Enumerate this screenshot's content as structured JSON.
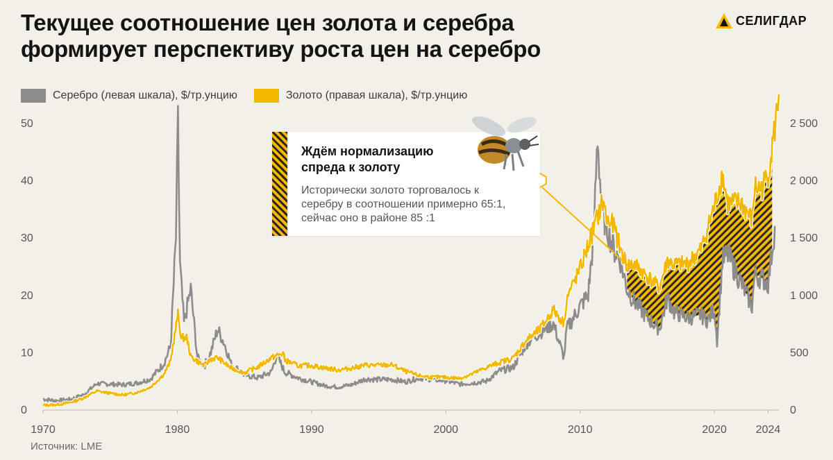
{
  "title_lines": [
    "Текущее соотношение цен золота и серебра",
    "формирует перспективу роста цен на серебро"
  ],
  "logo": {
    "text": "СЕЛИГДАР"
  },
  "colors": {
    "silver": "#8c8c8c",
    "gold": "#f5b800",
    "background": "#f3f0ea",
    "text": "#141414"
  },
  "callout": {
    "heading_lines": [
      "Ждём нормализацию",
      "спреда к золоту"
    ],
    "body_lines": [
      "Исторически золото торговалось к",
      "серебру в соотношении примерно 65:1,",
      "сейчас оно в районе 85 :1"
    ],
    "icon": "bee-icon",
    "marker": "hexagon-marker-icon"
  },
  "source": "Источник: LME",
  "chart_data": {
    "type": "line",
    "title": "Текущее соотношение цен золота и серебра формирует перспективу роста цен на серебро",
    "xlabel": "",
    "xlim": [
      1970,
      2024.8
    ],
    "x_ticks": [
      1970,
      1980,
      1990,
      2000,
      2010,
      2020,
      2024
    ],
    "y_left": {
      "lim": [
        0,
        50
      ],
      "ticks": [
        0,
        10,
        20,
        30,
        40,
        50
      ],
      "tick_labels": [
        "0",
        "10",
        "20",
        "30",
        "40",
        "50"
      ]
    },
    "y_right": {
      "lim": [
        0,
        2500
      ],
      "ticks": [
        0,
        500,
        1000,
        1500,
        2000,
        2500
      ],
      "tick_labels": [
        "0",
        "500",
        "1 000",
        "1 500",
        "2 000",
        "2 500"
      ]
    },
    "legend_position": "top-left",
    "shaded_spread_range": [
      2013.5,
      2024.3
    ],
    "series": [
      {
        "name": "Серебро (левая шкала), $/тр.унцию",
        "axis": "left",
        "color": "#8c8c8c",
        "x": [
          1970,
          1971,
          1972,
          1973,
          1974,
          1975,
          1976,
          1977,
          1978,
          1979,
          1979.5,
          1979.9,
          1980.05,
          1980.2,
          1980.5,
          1981,
          1981.5,
          1982,
          1982.5,
          1983,
          1983.5,
          1984,
          1985,
          1986,
          1987,
          1987.4,
          1988,
          1989,
          1990,
          1991,
          1992,
          1993,
          1994,
          1995,
          1996,
          1997,
          1998,
          1999,
          2000,
          2001,
          2002,
          2003,
          2004,
          2005,
          2006,
          2007,
          2008,
          2008.8,
          2009,
          2010,
          2010.6,
          2011,
          2011.3,
          2011.6,
          2012,
          2012.5,
          2013,
          2013.5,
          2014,
          2015,
          2015.9,
          2016.5,
          2017,
          2018,
          2019,
          2019.5,
          2020,
          2020.2,
          2020.6,
          2021,
          2022,
          2022.8,
          2023,
          2023.5,
          2024,
          2024.5
        ],
        "values": [
          1.8,
          1.5,
          1.7,
          2.5,
          4.5,
          4.4,
          4.3,
          4.6,
          5.3,
          8.0,
          11.0,
          30.0,
          49.5,
          25.0,
          15.0,
          21.0,
          9.0,
          7.5,
          10.0,
          14.0,
          11.5,
          8.0,
          6.0,
          5.5,
          6.5,
          9.5,
          6.5,
          5.5,
          4.8,
          4.1,
          3.9,
          4.3,
          5.3,
          5.2,
          5.2,
          4.8,
          5.5,
          5.2,
          5.0,
          4.4,
          4.6,
          4.9,
          6.7,
          7.3,
          11.5,
          13.4,
          15.0,
          9.0,
          14.0,
          18.0,
          20.0,
          30.0,
          48.0,
          35.0,
          32.0,
          28.0,
          26.0,
          21.0,
          19.0,
          16.0,
          14.0,
          19.5,
          17.0,
          16.0,
          16.5,
          15.5,
          17.5,
          12.0,
          26.0,
          27.0,
          22.0,
          18.0,
          23.5,
          23.0,
          22.0,
          32.0
        ]
      },
      {
        "name": "Золото (правая шкала), $/тр.унцию",
        "axis": "right",
        "color": "#f5b800",
        "x": [
          1970,
          1971,
          1972,
          1973,
          1974,
          1975,
          1976,
          1977,
          1978,
          1979,
          1979.5,
          1980.05,
          1980.3,
          1980.7,
          1981,
          1982,
          1982.5,
          1983,
          1984,
          1985,
          1986,
          1987,
          1987.9,
          1988,
          1989,
          1990,
          1991,
          1992,
          1993,
          1994,
          1995,
          1996,
          1997,
          1998,
          1999,
          2000,
          2001,
          2002,
          2003,
          2004,
          2005,
          2006,
          2007,
          2008,
          2008.8,
          2009,
          2010,
          2011,
          2011.7,
          2012,
          2012.5,
          2013,
          2013.5,
          2014,
          2015,
          2015.9,
          2016.5,
          2017,
          2018,
          2019,
          2020,
          2020.6,
          2021,
          2022,
          2022.8,
          2023,
          2023.5,
          2024,
          2024.5,
          2024.8
        ],
        "values": [
          36,
          41,
          58,
          98,
          160,
          140,
          125,
          148,
          193,
          306,
          420,
          830,
          620,
          630,
          460,
          380,
          440,
          450,
          360,
          320,
          370,
          450,
          490,
          430,
          380,
          383,
          360,
          344,
          360,
          385,
          384,
          388,
          330,
          294,
          280,
          280,
          270,
          310,
          364,
          410,
          445,
          604,
          696,
          870,
          750,
          972,
          1225,
          1572,
          1820,
          1650,
          1600,
          1400,
          1250,
          1270,
          1160,
          1060,
          1300,
          1260,
          1270,
          1390,
          1770,
          2050,
          1790,
          1800,
          1650,
          1940,
          1920,
          2050,
          2450,
          2750
        ]
      }
    ]
  }
}
